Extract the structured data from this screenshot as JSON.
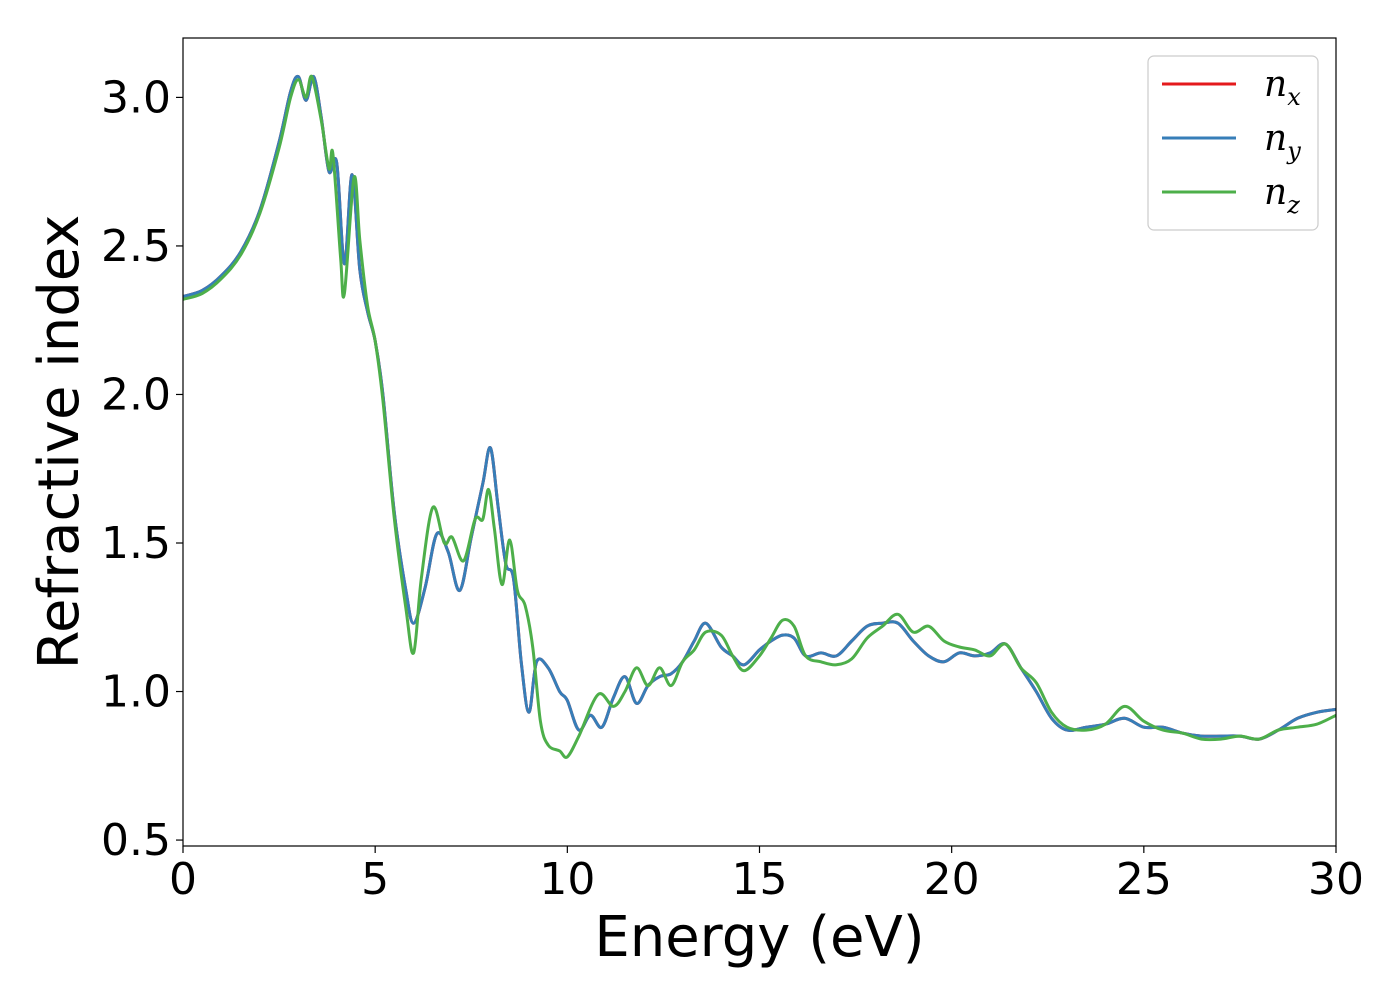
{
  "chart_data": {
    "type": "line",
    "title": "",
    "xlabel": "Energy (eV)",
    "ylabel": "Refractive index",
    "xlim": [
      0,
      30
    ],
    "ylim": [
      0.48,
      3.2
    ],
    "xticks": [
      0,
      5,
      10,
      15,
      20,
      25,
      30
    ],
    "yticks": [
      0.5,
      1.0,
      1.5,
      2.0,
      2.5,
      3.0
    ],
    "xtick_labels": [
      "0",
      "5",
      "10",
      "15",
      "20",
      "25",
      "30"
    ],
    "ytick_labels": [
      "0.5",
      "1.0",
      "1.5",
      "2.0",
      "2.5",
      "3.0"
    ],
    "grid": false,
    "legend_position": "top-right",
    "series": [
      {
        "name": "n_x",
        "legend_base": "n",
        "legend_sub": "x",
        "color": "#e41a1c",
        "x": [
          0,
          0.5,
          1.0,
          1.5,
          2.0,
          2.5,
          2.8,
          3.0,
          3.2,
          3.4,
          3.6,
          3.8,
          4.0,
          4.2,
          4.4,
          4.6,
          4.8,
          5.0,
          5.2,
          5.5,
          5.8,
          6.0,
          6.3,
          6.6,
          6.9,
          7.2,
          7.5,
          7.8,
          8.0,
          8.2,
          8.4,
          8.6,
          8.8,
          9.0,
          9.2,
          9.5,
          9.8,
          10.0,
          10.3,
          10.6,
          10.9,
          11.2,
          11.5,
          11.8,
          12.1,
          12.4,
          12.7,
          13.0,
          13.3,
          13.6,
          14.0,
          14.3,
          14.6,
          15.0,
          15.3,
          15.6,
          15.9,
          16.2,
          16.6,
          17.0,
          17.4,
          17.8,
          18.2,
          18.6,
          19.0,
          19.4,
          19.8,
          20.2,
          20.6,
          21.0,
          21.4,
          21.8,
          22.2,
          22.6,
          23.0,
          23.5,
          24.0,
          24.5,
          25.0,
          25.5,
          26.0,
          26.5,
          27.0,
          27.5,
          28.0,
          28.5,
          29.0,
          29.5,
          30.0
        ],
        "y": [
          2.33,
          2.35,
          2.4,
          2.48,
          2.62,
          2.85,
          3.02,
          3.07,
          2.99,
          3.07,
          2.93,
          2.75,
          2.78,
          2.44,
          2.74,
          2.42,
          2.28,
          2.18,
          2.0,
          1.6,
          1.34,
          1.23,
          1.35,
          1.53,
          1.47,
          1.34,
          1.52,
          1.7,
          1.82,
          1.62,
          1.43,
          1.38,
          1.1,
          0.93,
          1.1,
          1.08,
          1.0,
          0.97,
          0.87,
          0.92,
          0.88,
          0.98,
          1.05,
          0.96,
          1.02,
          1.05,
          1.06,
          1.1,
          1.17,
          1.23,
          1.15,
          1.12,
          1.09,
          1.14,
          1.17,
          1.19,
          1.18,
          1.12,
          1.13,
          1.12,
          1.17,
          1.22,
          1.23,
          1.23,
          1.17,
          1.12,
          1.1,
          1.13,
          1.12,
          1.13,
          1.16,
          1.08,
          1.0,
          0.91,
          0.87,
          0.88,
          0.89,
          0.91,
          0.88,
          0.88,
          0.86,
          0.85,
          0.85,
          0.85,
          0.84,
          0.87,
          0.91,
          0.93,
          0.94
        ]
      },
      {
        "name": "n_y",
        "legend_base": "n",
        "legend_sub": "y",
        "color": "#377eb8",
        "x": [
          0,
          0.5,
          1.0,
          1.5,
          2.0,
          2.5,
          2.8,
          3.0,
          3.2,
          3.4,
          3.6,
          3.8,
          4.0,
          4.2,
          4.4,
          4.6,
          4.8,
          5.0,
          5.2,
          5.5,
          5.8,
          6.0,
          6.3,
          6.6,
          6.9,
          7.2,
          7.5,
          7.8,
          8.0,
          8.2,
          8.4,
          8.6,
          8.8,
          9.0,
          9.2,
          9.5,
          9.8,
          10.0,
          10.3,
          10.6,
          10.9,
          11.2,
          11.5,
          11.8,
          12.1,
          12.4,
          12.7,
          13.0,
          13.3,
          13.6,
          14.0,
          14.3,
          14.6,
          15.0,
          15.3,
          15.6,
          15.9,
          16.2,
          16.6,
          17.0,
          17.4,
          17.8,
          18.2,
          18.6,
          19.0,
          19.4,
          19.8,
          20.2,
          20.6,
          21.0,
          21.4,
          21.8,
          22.2,
          22.6,
          23.0,
          23.5,
          24.0,
          24.5,
          25.0,
          25.5,
          26.0,
          26.5,
          27.0,
          27.5,
          28.0,
          28.5,
          29.0,
          29.5,
          30.0
        ],
        "y": [
          2.33,
          2.35,
          2.4,
          2.48,
          2.62,
          2.85,
          3.02,
          3.07,
          2.99,
          3.07,
          2.93,
          2.75,
          2.78,
          2.44,
          2.74,
          2.42,
          2.28,
          2.18,
          2.0,
          1.6,
          1.34,
          1.23,
          1.35,
          1.53,
          1.47,
          1.34,
          1.52,
          1.7,
          1.82,
          1.62,
          1.43,
          1.38,
          1.1,
          0.93,
          1.1,
          1.08,
          1.0,
          0.97,
          0.87,
          0.92,
          0.88,
          0.98,
          1.05,
          0.96,
          1.02,
          1.05,
          1.06,
          1.1,
          1.17,
          1.23,
          1.15,
          1.12,
          1.09,
          1.14,
          1.17,
          1.19,
          1.18,
          1.12,
          1.13,
          1.12,
          1.17,
          1.22,
          1.23,
          1.23,
          1.17,
          1.12,
          1.1,
          1.13,
          1.12,
          1.13,
          1.16,
          1.08,
          1.0,
          0.91,
          0.87,
          0.88,
          0.89,
          0.91,
          0.88,
          0.88,
          0.86,
          0.85,
          0.85,
          0.85,
          0.84,
          0.87,
          0.91,
          0.93,
          0.94
        ]
      },
      {
        "name": "n_z",
        "legend_base": "n",
        "legend_sub": "z",
        "color": "#4daf4a",
        "x": [
          0,
          0.5,
          1.0,
          1.5,
          2.0,
          2.5,
          2.8,
          3.0,
          3.2,
          3.35,
          3.6,
          3.8,
          3.9,
          4.1,
          4.2,
          4.45,
          4.6,
          4.8,
          5.0,
          5.2,
          5.5,
          5.8,
          6.0,
          6.2,
          6.5,
          6.8,
          7.0,
          7.3,
          7.6,
          7.8,
          7.95,
          8.1,
          8.3,
          8.5,
          8.7,
          8.9,
          9.1,
          9.3,
          9.5,
          9.8,
          10.0,
          10.3,
          10.8,
          11.2,
          11.5,
          11.8,
          12.1,
          12.4,
          12.7,
          13.0,
          13.3,
          13.6,
          14.0,
          14.3,
          14.6,
          15.0,
          15.3,
          15.6,
          15.9,
          16.2,
          16.6,
          17.0,
          17.4,
          17.8,
          18.2,
          18.6,
          19.0,
          19.4,
          19.8,
          20.2,
          20.6,
          21.0,
          21.4,
          21.8,
          22.2,
          22.6,
          23.0,
          23.5,
          24.0,
          24.5,
          25.0,
          25.5,
          26.0,
          26.5,
          27.0,
          27.5,
          28.0,
          28.5,
          29.0,
          29.5,
          30.0
        ],
        "y": [
          2.32,
          2.34,
          2.39,
          2.47,
          2.61,
          2.83,
          3.0,
          3.06,
          3.0,
          3.07,
          2.92,
          2.76,
          2.81,
          2.46,
          2.34,
          2.73,
          2.52,
          2.3,
          2.18,
          1.98,
          1.58,
          1.28,
          1.13,
          1.38,
          1.62,
          1.5,
          1.52,
          1.44,
          1.58,
          1.58,
          1.68,
          1.55,
          1.36,
          1.51,
          1.34,
          1.29,
          1.15,
          0.9,
          0.82,
          0.8,
          0.78,
          0.85,
          0.99,
          0.95,
          1.0,
          1.08,
          1.02,
          1.08,
          1.02,
          1.1,
          1.14,
          1.2,
          1.19,
          1.12,
          1.07,
          1.12,
          1.18,
          1.24,
          1.22,
          1.12,
          1.1,
          1.09,
          1.11,
          1.18,
          1.22,
          1.26,
          1.2,
          1.22,
          1.17,
          1.15,
          1.14,
          1.12,
          1.16,
          1.08,
          1.03,
          0.93,
          0.88,
          0.87,
          0.89,
          0.95,
          0.9,
          0.87,
          0.86,
          0.84,
          0.84,
          0.85,
          0.84,
          0.87,
          0.88,
          0.89,
          0.92
        ]
      }
    ]
  }
}
